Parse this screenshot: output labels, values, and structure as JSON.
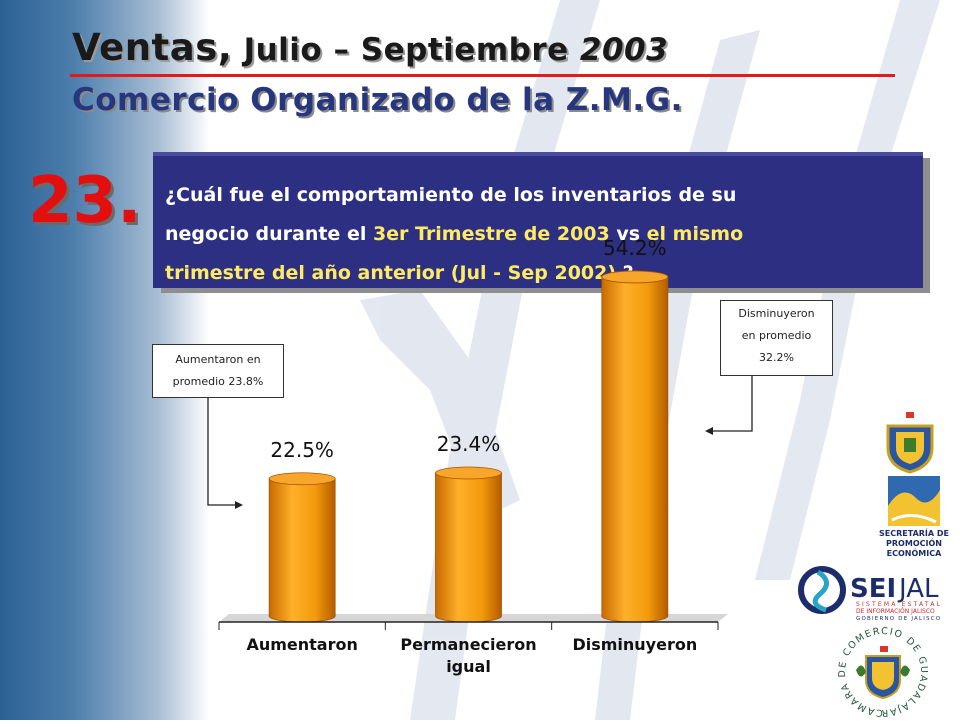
{
  "header": {
    "title_main": "Ventas,",
    "title_mid": " Julio – Septiembre ",
    "title_year": "2003",
    "subtitle": "Comercio Organizado de la Z.M.G."
  },
  "question": {
    "number": "23.",
    "line1": "¿Cuál fue el comportamiento de los inventarios de su",
    "line2_a": "negocio durante el ",
    "line2_b": "3er Trimestre de 2003",
    "line2_c": " vs ",
    "line2_d": "el mismo",
    "line3_a": "trimestre del año anterior (Jul - Sep 2002)",
    "line3_b": " ?"
  },
  "callouts": {
    "left": {
      "line1": "Aumentaron en",
      "line2": "promedio 23.8%"
    },
    "right": {
      "line1": "Disminuyeron",
      "line2": "en promedio",
      "line3": "32.2%"
    }
  },
  "logos": {
    "secretaria": [
      "SECRETARÍA DE",
      "PROMOCIÓN",
      "ECONÓMICA"
    ],
    "seijal": {
      "name_a": "SEI",
      "name_b": "JAL",
      "line1": "SISTEMA ESTATAL",
      "line2": "DE INFORMACIÓN JALISCO",
      "line3": "GOBIERNO DE JALISCO"
    },
    "camara": "CAMARA DE COMERCIO DE GUADALAJARA"
  },
  "colors": {
    "title_red_rule": "#e01b1b",
    "question_box": "#2d2f82",
    "question_highlight": "#ffeb63",
    "bar_fill": "#f39a0b",
    "number_red": "#e30f0f"
  },
  "chart_data": {
    "type": "bar",
    "categories": [
      "Aumentaron",
      "Permanecieron igual",
      "Disminuyeron"
    ],
    "category_lines": [
      [
        "Aumentaron"
      ],
      [
        "Permanecieron",
        "igual"
      ],
      [
        "Disminuyeron"
      ]
    ],
    "values": [
      22.5,
      23.4,
      54.2
    ],
    "value_labels": [
      "22.5%",
      "23.4%",
      "54.2%"
    ],
    "ylim": [
      0,
      60
    ],
    "title": "",
    "xlabel": "",
    "ylabel": "",
    "grid": false,
    "legend": "none"
  }
}
